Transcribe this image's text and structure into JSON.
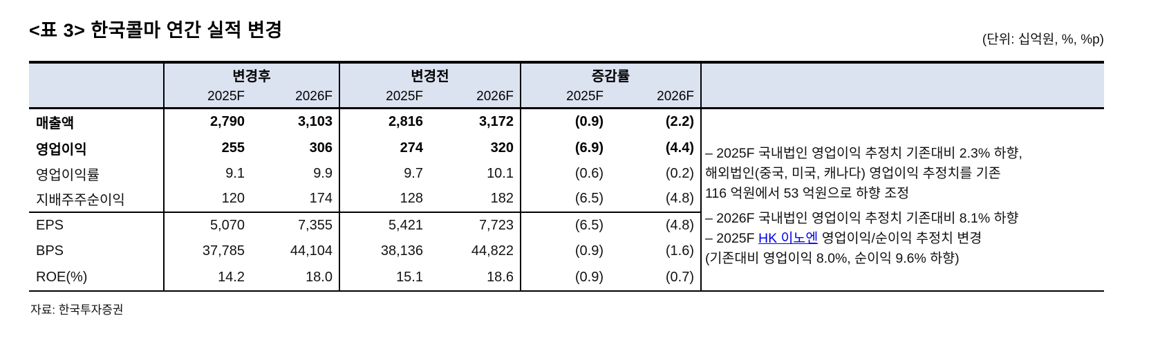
{
  "page": {
    "title": "<표 3> 한국콜마 연간 실적 변경",
    "unit_note": "(단위: 십억원, %, %p)",
    "source": "자료: 한국투자증권"
  },
  "table": {
    "column_groups": [
      {
        "label": "변경후",
        "sub": [
          "2025F",
          "2026F"
        ]
      },
      {
        "label": "변경전",
        "sub": [
          "2025F",
          "2026F"
        ]
      },
      {
        "label": "증감률",
        "sub": [
          "2025F",
          "2026F"
        ]
      }
    ],
    "rows": [
      {
        "label": "매출액",
        "values": [
          "2,790",
          "3,103",
          "2,816",
          "3,172",
          "(0.9)",
          "(2.2)"
        ]
      },
      {
        "label": "영업이익",
        "values": [
          "255",
          "306",
          "274",
          "320",
          "(6.9)",
          "(4.4)"
        ]
      },
      {
        "label": "영업이익률",
        "values": [
          "9.1",
          "9.9",
          "9.7",
          "10.1",
          "(0.6)",
          "(0.2)"
        ]
      },
      {
        "label": "지배주주순이익",
        "values": [
          "120",
          "174",
          "128",
          "182",
          "(6.5)",
          "(4.8)"
        ]
      },
      {
        "label": "EPS",
        "values": [
          "5,070",
          "7,355",
          "5,421",
          "7,723",
          "(6.5)",
          "(4.8)"
        ]
      },
      {
        "label": "BPS",
        "values": [
          "37,785",
          "44,104",
          "38,136",
          "44,822",
          "(0.9)",
          "(1.6)"
        ]
      },
      {
        "label": "ROE(%)",
        "values": [
          "14.2",
          "18.0",
          "15.1",
          "18.6",
          "(0.9)",
          "(0.7)"
        ]
      }
    ],
    "notes": {
      "line1": "– 2025F 국내법인 영업이익 추정치 기존대비 2.3% 하향,",
      "line2": "해외법인(중국, 미국, 캐나다) 영업이익 추정치를 기존",
      "line3": "116 억원에서 53 억원으로 하향 조정",
      "line4": "– 2026F 국내법인 영업이익 추정치 기존대비 8.1% 하향",
      "line5_prefix": "– 2025F ",
      "line5_link": "HK 이노엔",
      "line5_suffix": " 영업이익/순이익 추정치 변경",
      "line6": "(기존대비 영업이익 8.0%, 순이익 9.6% 하향)"
    },
    "colors": {
      "header_bg": "#dbe2f0",
      "link": "#0000ee",
      "border": "#000000"
    }
  }
}
